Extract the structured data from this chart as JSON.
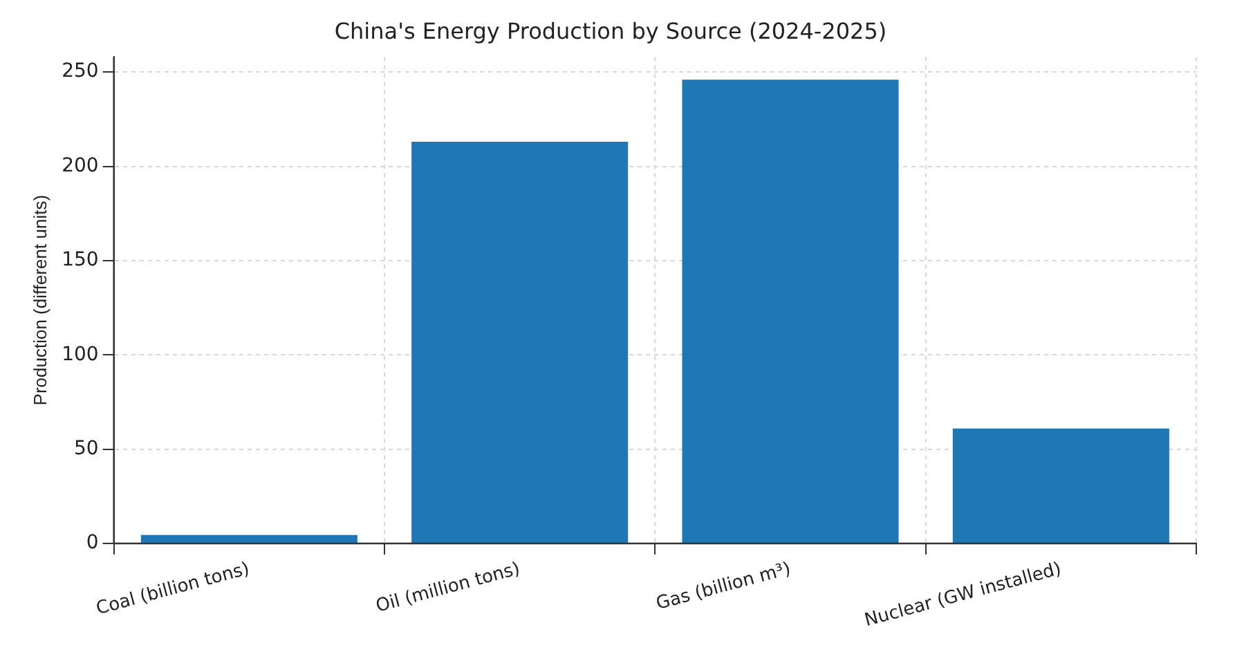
{
  "chart_data": {
    "type": "bar",
    "title": "China's Energy Production by Source (2024-2025)",
    "ylabel": "Production (different units)",
    "categories": [
      "Coal (billion tons)",
      "Oil (million tons)",
      "Gas (billion m³)",
      "Nuclear (GW installed)"
    ],
    "values": [
      4.5,
      213,
      246,
      61
    ],
    "color": "#1f77b4",
    "ylim": [
      0,
      258
    ],
    "yticks": [
      0,
      50,
      100,
      150,
      200,
      250
    ],
    "grid": true
  }
}
